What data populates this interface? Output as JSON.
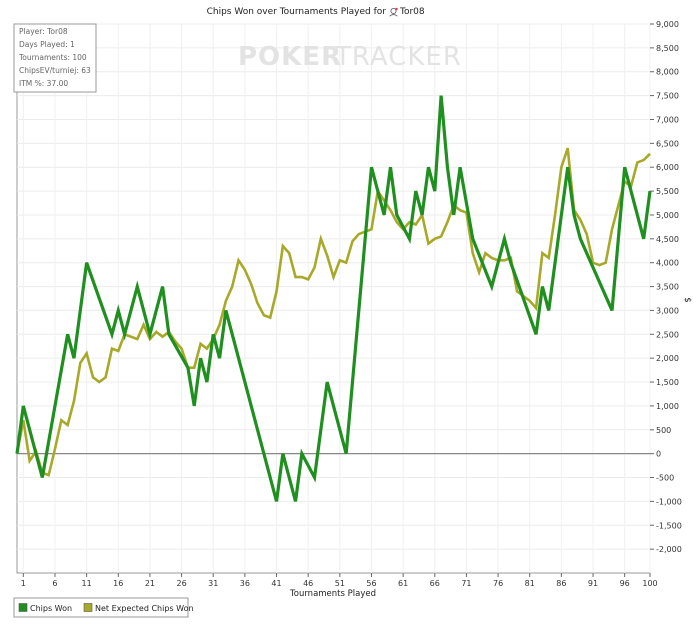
{
  "chart_data": {
    "type": "line",
    "title": "Chips Won over Tournaments Played for",
    "player_name": "Tor08",
    "xlabel": "Tournaments Played",
    "ylabel": "$",
    "xlim": [
      0,
      100
    ],
    "ylim": [
      -2500,
      9000
    ],
    "x_ticks": [
      1,
      6,
      11,
      16,
      21,
      26,
      31,
      36,
      41,
      46,
      51,
      56,
      61,
      66,
      71,
      76,
      81,
      86,
      91,
      96,
      100
    ],
    "y_ticks": [
      -2000,
      -1500,
      -1000,
      -500,
      0,
      500,
      1000,
      1500,
      2000,
      2500,
      3000,
      3500,
      4000,
      4500,
      5000,
      5500,
      6000,
      6500,
      7000,
      7500,
      8000,
      8500,
      9000
    ],
    "y_tick_labels": [
      "-2,000",
      "-1,500",
      "-1,000",
      "-500",
      "0",
      "500",
      "1,000",
      "1,500",
      "2,000",
      "2,500",
      "3,000",
      "3,500",
      "4,000",
      "4,500",
      "5,000",
      "5,500",
      "6,000",
      "6,500",
      "7,000",
      "7,500",
      "8,000",
      "8,500",
      "9,000"
    ],
    "grid": true,
    "legend_position": "bottom-left",
    "info_box": [
      "Player: Tor08",
      "Days Played: 1",
      "Tournaments: 100",
      "ChipsEV/turniej: 63",
      "ITM %: 37.00"
    ],
    "watermark": {
      "bold": "POKER",
      "light": "TRACKER"
    },
    "series": [
      {
        "name": "Chips Won",
        "color": "#1f8f1f",
        "x": [
          0,
          1,
          4,
          8,
          9,
          11,
          15,
          16,
          17,
          19,
          20,
          21,
          23,
          24,
          27,
          28,
          29,
          30,
          31,
          32,
          33,
          41,
          42,
          44,
          45,
          47,
          49,
          52,
          56,
          58,
          59,
          60,
          62,
          63,
          64,
          65,
          66,
          67,
          68,
          69,
          70,
          72,
          75,
          77,
          78,
          82,
          83,
          84,
          87,
          88,
          89,
          94,
          96,
          99,
          100
        ],
        "y": [
          0,
          1000,
          -500,
          2500,
          2000,
          4000,
          2500,
          3000,
          2500,
          3500,
          3000,
          2500,
          3500,
          2500,
          1800,
          1000,
          2000,
          1500,
          2500,
          2000,
          3000,
          -1000,
          0,
          -1000,
          0,
          -500,
          1500,
          0,
          6000,
          5000,
          6000,
          5000,
          4500,
          5500,
          5000,
          6000,
          5500,
          7500,
          6000,
          5000,
          6000,
          4500,
          3500,
          4500,
          4000,
          2500,
          3500,
          3000,
          6000,
          5000,
          4500,
          3000,
          6000,
          4500,
          5500
        ]
      },
      {
        "name": "Net Expected Chips Won",
        "color": "#a8a829",
        "x": [
          0,
          1,
          2,
          3,
          4,
          5,
          6,
          7,
          8,
          9,
          10,
          11,
          12,
          13,
          14,
          15,
          16,
          17,
          18,
          19,
          20,
          21,
          22,
          23,
          24,
          25,
          26,
          27,
          28,
          29,
          30,
          31,
          32,
          33,
          34,
          35,
          36,
          37,
          38,
          39,
          40,
          41,
          42,
          43,
          44,
          45,
          46,
          47,
          48,
          49,
          50,
          51,
          52,
          53,
          54,
          55,
          56,
          57,
          58,
          59,
          60,
          61,
          62,
          63,
          64,
          65,
          66,
          67,
          68,
          69,
          70,
          71,
          72,
          73,
          74,
          75,
          76,
          77,
          78,
          79,
          80,
          81,
          82,
          83,
          84,
          85,
          86,
          87,
          88,
          89,
          90,
          91,
          92,
          93,
          94,
          95,
          96,
          97,
          98,
          99,
          100
        ],
        "y": [
          0,
          700,
          -150,
          50,
          -400,
          -450,
          100,
          700,
          600,
          1100,
          1900,
          2100,
          1600,
          1500,
          1600,
          2200,
          2150,
          2500,
          2450,
          2400,
          2700,
          2400,
          2550,
          2450,
          2550,
          2350,
          2200,
          1800,
          1800,
          2300,
          2200,
          2400,
          2700,
          3200,
          3500,
          4050,
          3850,
          3550,
          3150,
          2900,
          2850,
          3400,
          4350,
          4200,
          3700,
          3700,
          3650,
          3900,
          4500,
          4150,
          3700,
          4050,
          4000,
          4450,
          4600,
          4650,
          4700,
          5500,
          5300,
          5100,
          4850,
          4700,
          4850,
          4800,
          5000,
          4400,
          4500,
          4550,
          4850,
          5200,
          5100,
          5050,
          4200,
          3800,
          4200,
          4100,
          4050,
          4050,
          4100,
          3400,
          3300,
          3200,
          3050,
          4200,
          4100,
          5000,
          6000,
          6400,
          5100,
          4900,
          4600,
          4000,
          3950,
          4000,
          4700,
          5200,
          5700,
          5600,
          6100,
          6150,
          6280
        ]
      }
    ]
  }
}
